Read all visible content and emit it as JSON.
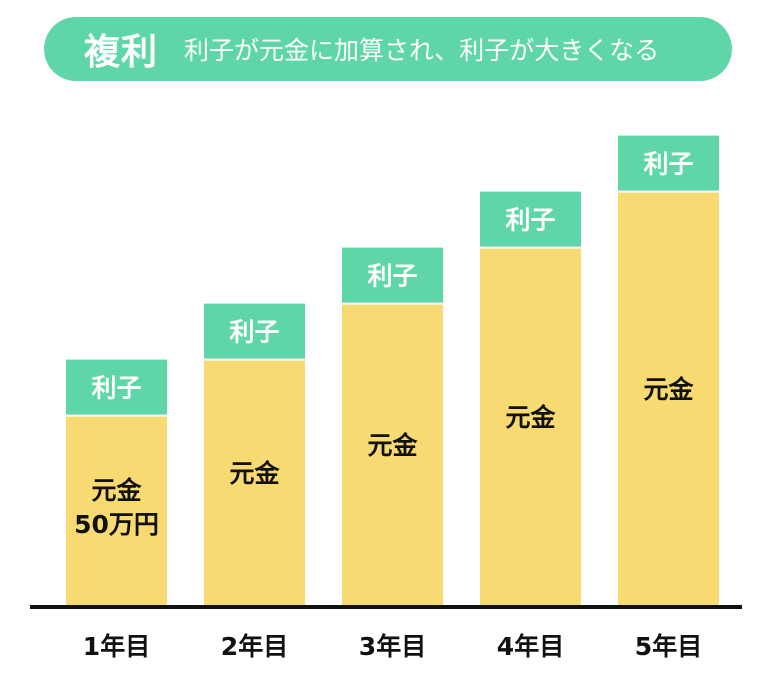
{
  "header": {
    "title": "複利",
    "subtitle": "利子が元金に加算され、利子が大きくなる"
  },
  "colors": {
    "accent": "#5fd6a8",
    "principal": "#f8da72",
    "baseline": "#111111",
    "text": "#111111"
  },
  "chart_data": {
    "type": "bar",
    "stacked": true,
    "categories": [
      "1年目",
      "2年目",
      "3年目",
      "4年目",
      "5年目"
    ],
    "series": [
      {
        "name": "元金",
        "values": [
          340,
          440,
          540,
          640,
          740
        ],
        "labels": [
          "元金\n50万円",
          "元金",
          "元金",
          "元金",
          "元金"
        ]
      },
      {
        "name": "利子",
        "values": [
          100,
          100,
          100,
          100,
          100
        ],
        "labels": [
          "利子",
          "利子",
          "利子",
          "利子",
          "利子"
        ]
      }
    ],
    "ylim": [
      0,
      850
    ],
    "grid": false,
    "legend": "none",
    "xlabel": "",
    "ylabel": ""
  }
}
